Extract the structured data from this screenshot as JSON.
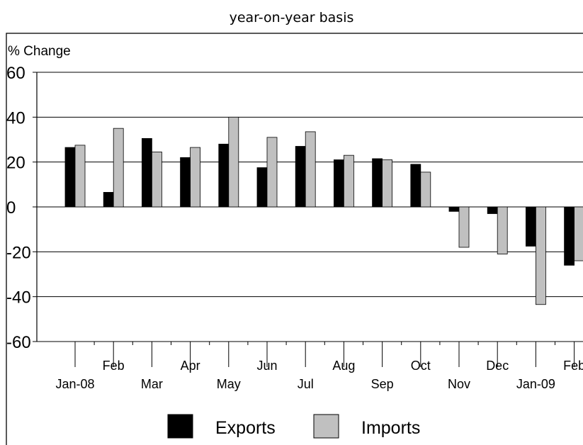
{
  "chart_data": {
    "type": "bar",
    "title": "year-on-year basis",
    "ylabel": "% Change",
    "ylim": [
      -60,
      60
    ],
    "yticks": [
      60,
      40,
      20,
      0,
      -20,
      -40,
      -60
    ],
    "grid": true,
    "categories": [
      "Jan-08",
      "Feb",
      "Mar",
      "Apr",
      "May",
      "Jun",
      "Jul",
      "Aug",
      "Sep",
      "Oct",
      "Nov",
      "Dec",
      "Jan-09",
      "Feb"
    ],
    "series": [
      {
        "name": "Exports",
        "color": "#000000",
        "values": [
          26.5,
          6.5,
          30.5,
          22,
          28,
          17.5,
          27,
          21,
          21.5,
          19,
          -2,
          -3,
          -17.5,
          -26
        ]
      },
      {
        "name": "Imports",
        "color": "#c0c0c0",
        "values": [
          27.5,
          35,
          24.5,
          26.5,
          40,
          31,
          33.5,
          23,
          21,
          15.5,
          -18,
          -21,
          -43.5,
          -24
        ]
      }
    ],
    "legend": "bottom"
  }
}
